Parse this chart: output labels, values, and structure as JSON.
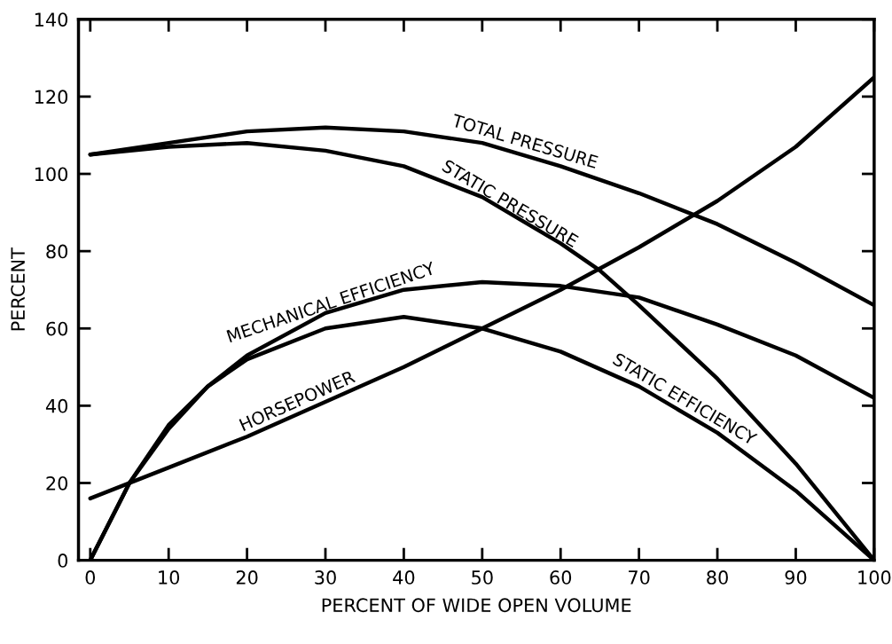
{
  "chart_data": {
    "type": "line",
    "xlabel": "PERCENT OF WIDE OPEN VOLUME",
    "ylabel": "PERCENT",
    "xlim": [
      -1.5,
      100
    ],
    "xticks": [
      0,
      10,
      20,
      30,
      40,
      50,
      60,
      70,
      80,
      90,
      100
    ],
    "ylim": [
      0,
      140
    ],
    "yticks": [
      0,
      20,
      40,
      60,
      80,
      100,
      120,
      140
    ],
    "grid": false,
    "legend": false,
    "marker": "none",
    "line_style": "solid",
    "series": [
      {
        "name": "TOTAL PRESSURE",
        "color": "#000000",
        "x": [
          0,
          10,
          20,
          30,
          40,
          50,
          60,
          70,
          80,
          90,
          100
        ],
        "values": [
          105,
          108,
          111,
          112,
          111,
          108,
          102,
          95,
          87,
          77,
          66
        ]
      },
      {
        "name": "STATIC PRESSURE",
        "color": "#000000",
        "x": [
          0,
          10,
          20,
          30,
          40,
          50,
          60,
          65,
          70,
          80,
          90,
          100
        ],
        "values": [
          105,
          107,
          108,
          106,
          102,
          94,
          82,
          75,
          66,
          47,
          25,
          0
        ]
      },
      {
        "name": "MECHANICAL EFFICIENCY",
        "color": "#000000",
        "x": [
          0,
          5,
          10,
          15,
          20,
          30,
          40,
          50,
          60,
          70,
          80,
          90,
          100
        ],
        "values": [
          0,
          20,
          34,
          45,
          53,
          64,
          70,
          72,
          71,
          68,
          61,
          53,
          42
        ]
      },
      {
        "name": "STATIC EFFICIENCY",
        "color": "#000000",
        "x": [
          0,
          5,
          10,
          15,
          20,
          30,
          40,
          50,
          60,
          70,
          80,
          90,
          100
        ],
        "values": [
          0,
          20,
          35,
          45,
          52,
          60,
          63,
          60,
          54,
          45,
          33,
          18,
          0
        ]
      },
      {
        "name": "HORSEPOWER",
        "color": "#000000",
        "x": [
          0,
          10,
          20,
          30,
          40,
          50,
          60,
          70,
          80,
          90,
          100
        ],
        "values": [
          16,
          24,
          32,
          41,
          50,
          60,
          70,
          81,
          93,
          107,
          125
        ]
      }
    ]
  }
}
